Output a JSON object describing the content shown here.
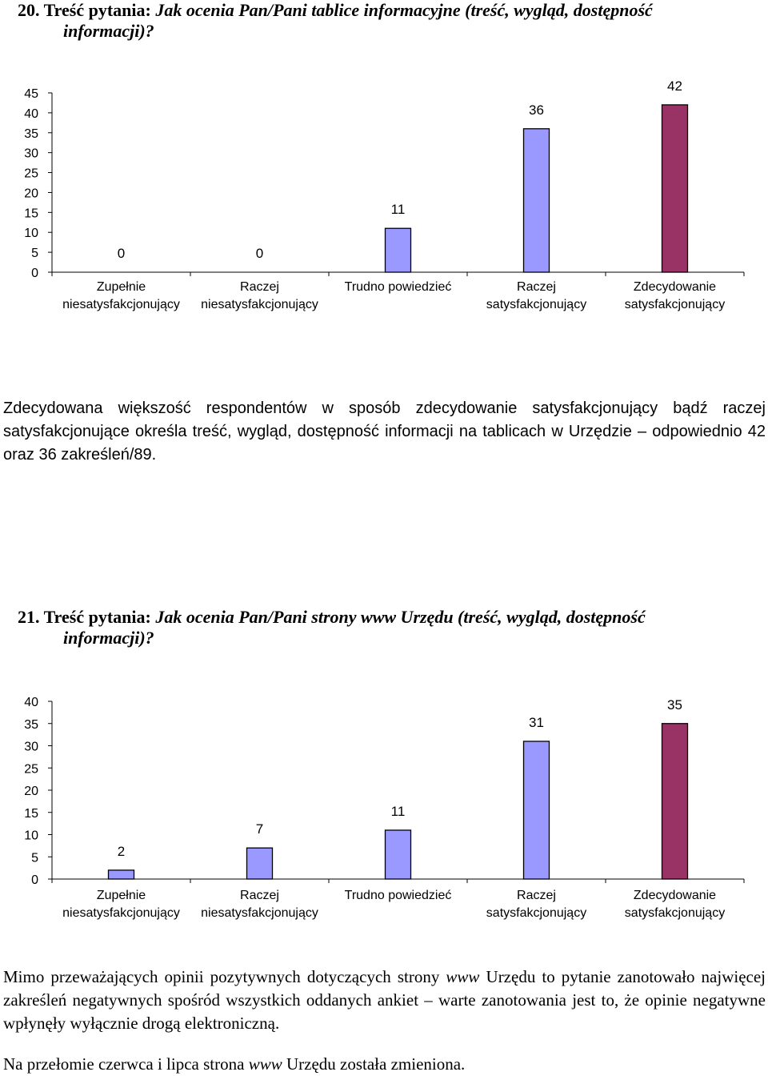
{
  "q20": {
    "num": "20. Treść pytania:",
    "question": "Jak ocenia Pan/Pani tablice informacyjne (treść, wygląd, dostępność",
    "question_cont": "informacji)?",
    "summary": "Zdecydowana większość respondentów w sposób zdecydowanie satysfakcjonujący bądź raczej satysfakcjonujące określa treść, wygląd, dostępność informacji na tablicach w Urzędzie – odpowiednio 42 oraz 36 zakreśleń/89."
  },
  "q21": {
    "num": "21. Treść pytania:",
    "question": "Jak ocenia Pan/Pani strony www Urzędu (treść, wygląd, dostępność",
    "question_cont": "informacji)?",
    "summary_a": "Mimo przeważających opinii pozytywnych dotyczących strony ",
    "summary_www": "www",
    "summary_b": " Urzędu to pytanie zanotowało najwięcej zakreśleń negatywnych spośród wszystkich oddanych ankiet – warte zanotowania jest to, że opinie negatywne wpłynęły wyłącznie drogą elektroniczną.",
    "note_a": "Na przełomie czerwca i lipca strona ",
    "note_www": "www",
    "note_b": " Urzędu została zmieniona."
  },
  "chart_data": [
    {
      "type": "bar",
      "categories": [
        [
          "Zupełnie",
          "niesatysfakcjonujący"
        ],
        [
          "Raczej",
          "niesatysfakcjonujący"
        ],
        [
          "Trudno powiedzieć"
        ],
        [
          "Raczej",
          "satysfakcjonujący"
        ],
        [
          "Zdecydowanie",
          "satysfakcjonujący"
        ]
      ],
      "values": [
        0,
        0,
        11,
        36,
        42
      ],
      "colors": [
        "#9999ff",
        "#9999ff",
        "#9999ff",
        "#9999ff",
        "#993366"
      ],
      "ylim": [
        0,
        45
      ],
      "yticks": [
        0,
        5,
        10,
        15,
        20,
        25,
        30,
        35,
        40,
        45
      ],
      "grid": false
    },
    {
      "type": "bar",
      "categories": [
        [
          "Zupełnie",
          "niesatysfakcjonujący"
        ],
        [
          "Raczej",
          "niesatysfakcjonujący"
        ],
        [
          "Trudno powiedzieć"
        ],
        [
          "Raczej",
          "satysfakcjonujący"
        ],
        [
          "Zdecydowanie",
          "satysfakcjonujący"
        ]
      ],
      "values": [
        2,
        7,
        11,
        31,
        35
      ],
      "colors": [
        "#9999ff",
        "#9999ff",
        "#9999ff",
        "#9999ff",
        "#993366"
      ],
      "ylim": [
        0,
        40
      ],
      "yticks": [
        0,
        5,
        10,
        15,
        20,
        25,
        30,
        35,
        40
      ],
      "grid": false
    }
  ]
}
